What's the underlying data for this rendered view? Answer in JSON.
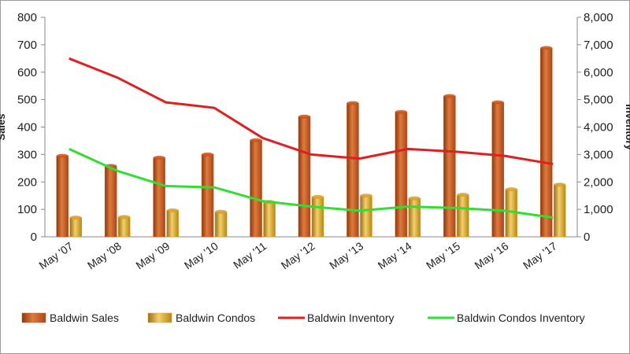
{
  "chart_data": {
    "type": "bar",
    "categories": [
      "May '07",
      "May '08",
      "May '09",
      "May '10",
      "May '11",
      "May '12",
      "May '13",
      "May '14",
      "May '15",
      "May '16",
      "May '17"
    ],
    "series": [
      {
        "name": "Baldwin Sales",
        "kind": "bar",
        "axis": "left",
        "color": "#c8561a",
        "values": [
          295,
          258,
          288,
          300,
          352,
          438,
          487,
          455,
          513,
          490,
          688
        ]
      },
      {
        "name": "Baldwin Condos",
        "kind": "bar",
        "axis": "left",
        "color": "#d9a02c",
        "values": [
          70,
          72,
          96,
          91,
          127,
          145,
          150,
          140,
          153,
          173,
          190
        ]
      },
      {
        "name": "Baldwin Inventory",
        "kind": "line",
        "axis": "right",
        "color": "#e02020",
        "values": [
          6500,
          5800,
          4900,
          4700,
          3600,
          3000,
          2850,
          3200,
          3100,
          2950,
          2650
        ]
      },
      {
        "name": "Baldwin Condos Inventory",
        "kind": "line",
        "axis": "right",
        "color": "#33dd33",
        "values": [
          3200,
          2400,
          1850,
          1800,
          1300,
          1100,
          950,
          1100,
          1050,
          950,
          700
        ]
      }
    ],
    "ylabel": "Sales",
    "ylabel_right": "Inventory",
    "ylim": [
      0,
      800
    ],
    "ylim_right": [
      0,
      8000
    ],
    "yticks": [
      "0",
      "100",
      "200",
      "300",
      "400",
      "500",
      "600",
      "700",
      "800"
    ],
    "yticks_right": [
      "0",
      "1,000",
      "2,000",
      "3,000",
      "4,000",
      "5,000",
      "6,000",
      "7,000",
      "8,000"
    ],
    "grid": false,
    "legend_position": "bottom"
  }
}
